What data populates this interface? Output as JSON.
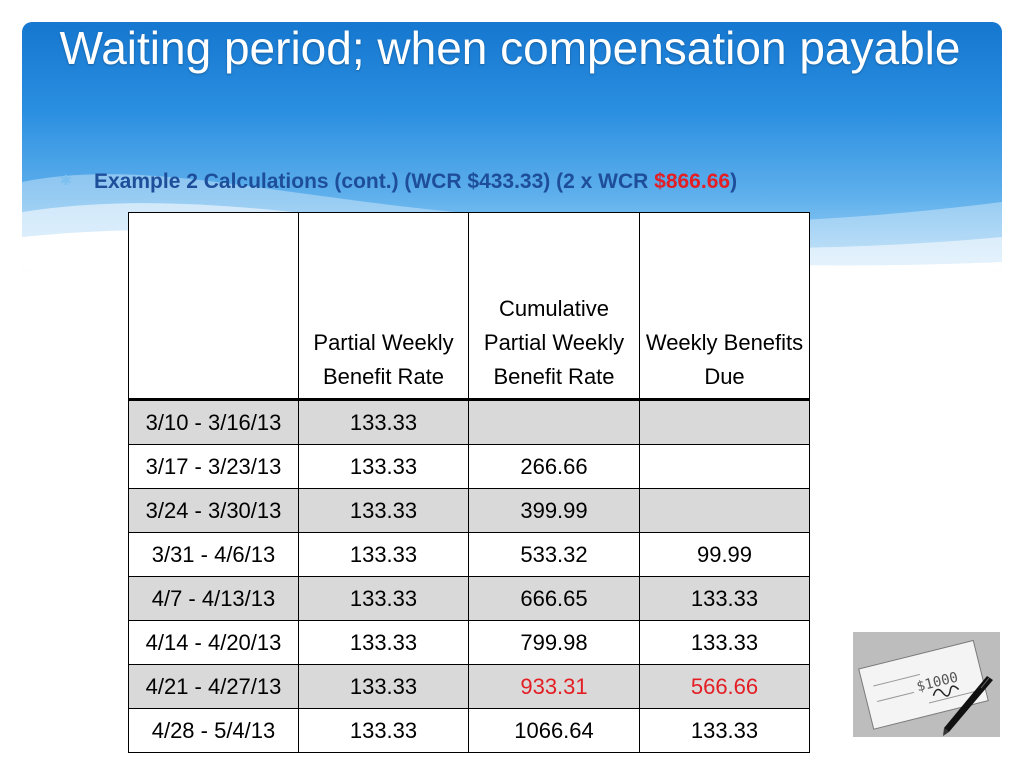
{
  "slide": {
    "title": "Waiting period; when compensation payable",
    "bullet": {
      "prefix": "Example 2 Calculations (cont.) (WCR $433.33) (2 x WCR ",
      "highlight": "$866.66",
      "suffix": ")"
    }
  },
  "table": {
    "headers": [
      "",
      "Partial Weekly Benefit Rate",
      "Cumulative Partial Weekly Benefit Rate",
      "Weekly Benefits Due"
    ],
    "rows": [
      [
        "3/10 - 3/16/13",
        "133.33",
        "",
        ""
      ],
      [
        "3/17 - 3/23/13",
        "133.33",
        "266.66",
        ""
      ],
      [
        "3/24 - 3/30/13",
        "133.33",
        "399.99",
        ""
      ],
      [
        "3/31 - 4/6/13",
        "133.33",
        "533.32",
        "99.99"
      ],
      [
        "4/7 - 4/13/13",
        "133.33",
        "666.65",
        "133.33"
      ],
      [
        "4/14 - 4/20/13",
        "133.33",
        "799.98",
        "133.33"
      ],
      [
        "4/21 - 4/27/13",
        "133.33",
        "933.31",
        "566.66"
      ],
      [
        "4/28 - 5/4/13",
        "133.33",
        "1066.64",
        "133.33"
      ]
    ]
  },
  "check_image": {
    "amount": "$1000"
  },
  "colors": {
    "banner_blue": "#1577cf",
    "bullet_text": "#1e4e9a",
    "highlight_red": "#e31e24",
    "row_shade": "#d9d9d9"
  }
}
